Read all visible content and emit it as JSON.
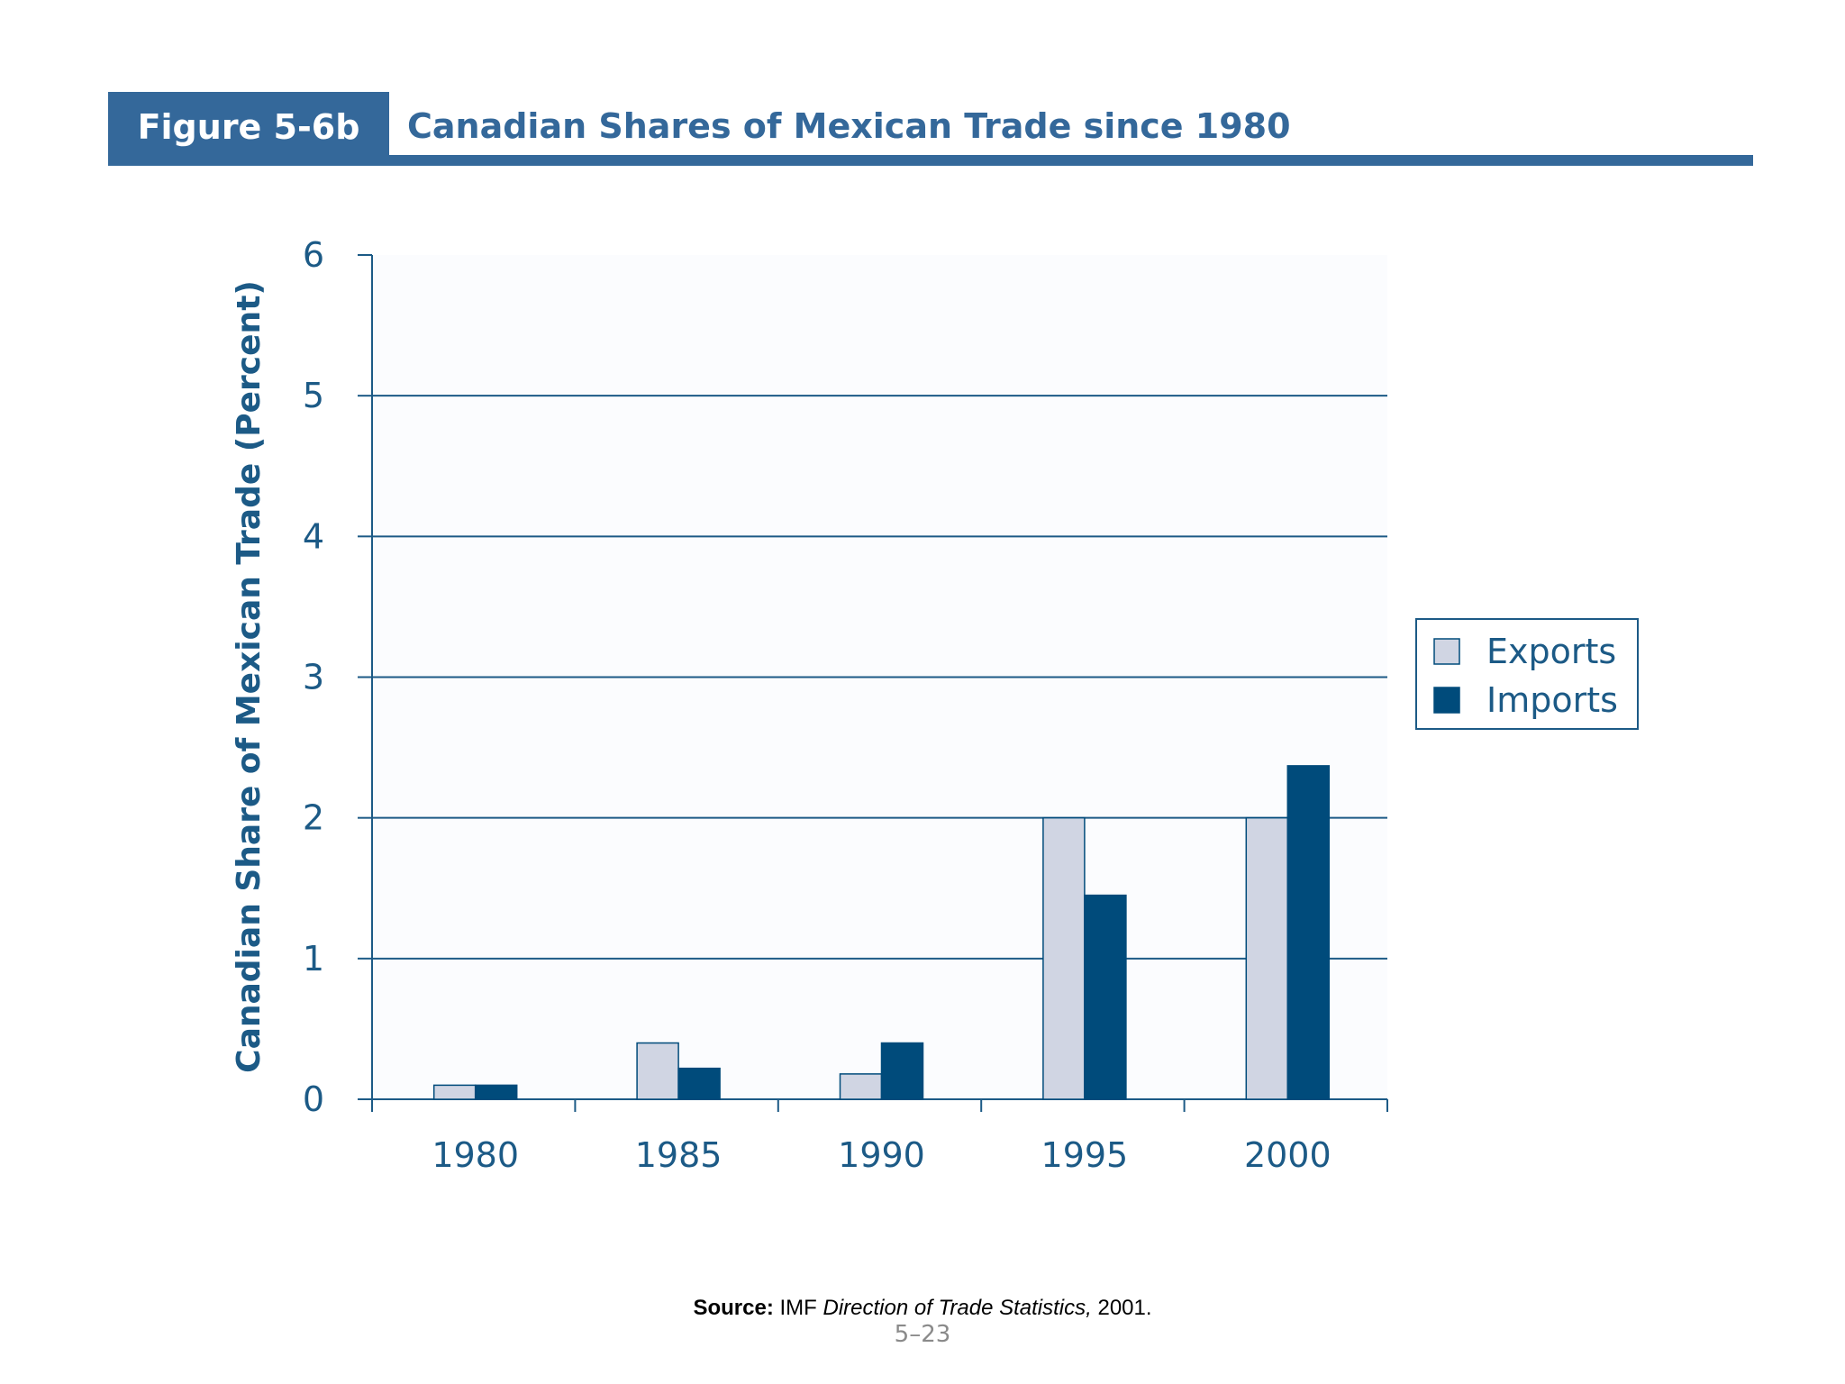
{
  "header": {
    "figure_label": "Figure 5-6b",
    "title": "Canadian Shares of Mexican Trade since 1980"
  },
  "footer": {
    "source_label": "Source:",
    "source_prefix": "IMF",
    "source_title": "Direction of Trade Statistics,",
    "source_suffix": "2001.",
    "page_number": "5–23"
  },
  "colors": {
    "exports": "#d0d5e3",
    "imports": "#004b7b",
    "axis": "#1c5a86",
    "header": "#34689a"
  },
  "chart_data": {
    "type": "bar",
    "title": "",
    "xlabel": "",
    "ylabel": "Canadian Share of Mexican Trade (Percent)",
    "categories": [
      "1980",
      "1985",
      "1990",
      "1995",
      "2000"
    ],
    "series": [
      {
        "name": "Exports",
        "values": [
          0.1,
          0.4,
          0.18,
          2.0,
          2.0
        ]
      },
      {
        "name": "Imports",
        "values": [
          0.1,
          0.22,
          0.4,
          1.45,
          2.37
        ]
      }
    ],
    "ylim": [
      0,
      6
    ],
    "yticks": [
      "0",
      "1",
      "2",
      "3",
      "4",
      "5",
      "6"
    ],
    "grid": true,
    "legend_position": "right"
  }
}
